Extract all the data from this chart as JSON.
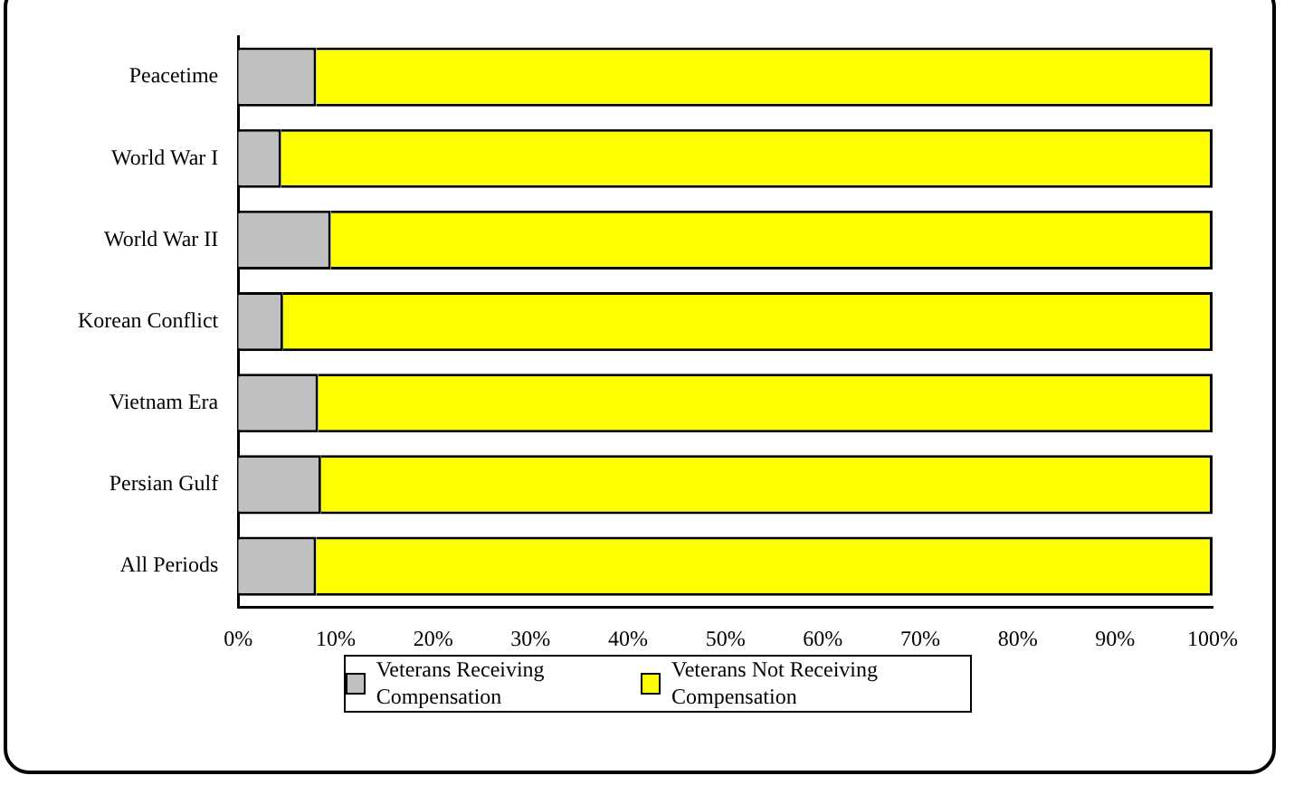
{
  "chart_data": {
    "type": "bar",
    "orientation": "horizontal",
    "stacked": true,
    "categories": [
      "Peacetime",
      "World War I",
      "World War II",
      "Korean Conflict",
      "Vietnam Era",
      "Persian Gulf",
      "All Periods"
    ],
    "series": [
      {
        "name": "Veterans Receiving Compensation",
        "color": "#c0c0c0",
        "values": [
          8,
          4.4,
          9.5,
          4.6,
          8.2,
          8.5,
          8
        ]
      },
      {
        "name": "Veterans Not Receiving Compensation",
        "color": "#ffff00",
        "values": [
          92,
          95.6,
          90.5,
          95.4,
          91.8,
          91.5,
          92
        ]
      }
    ],
    "xlim": [
      0,
      100
    ],
    "xticks": [
      {
        "value": 0,
        "label": "0%"
      },
      {
        "value": 10,
        "label": "10%"
      },
      {
        "value": 20,
        "label": "20%"
      },
      {
        "value": 30,
        "label": "30%"
      },
      {
        "value": 40,
        "label": "40%"
      },
      {
        "value": 50,
        "label": "50%"
      },
      {
        "value": 60,
        "label": "60%"
      },
      {
        "value": 70,
        "label": "70%"
      },
      {
        "value": 80,
        "label": "80%"
      },
      {
        "value": 90,
        "label": "90%"
      },
      {
        "value": 100,
        "label": "100%"
      }
    ],
    "grid": false,
    "legend": "bottom"
  }
}
